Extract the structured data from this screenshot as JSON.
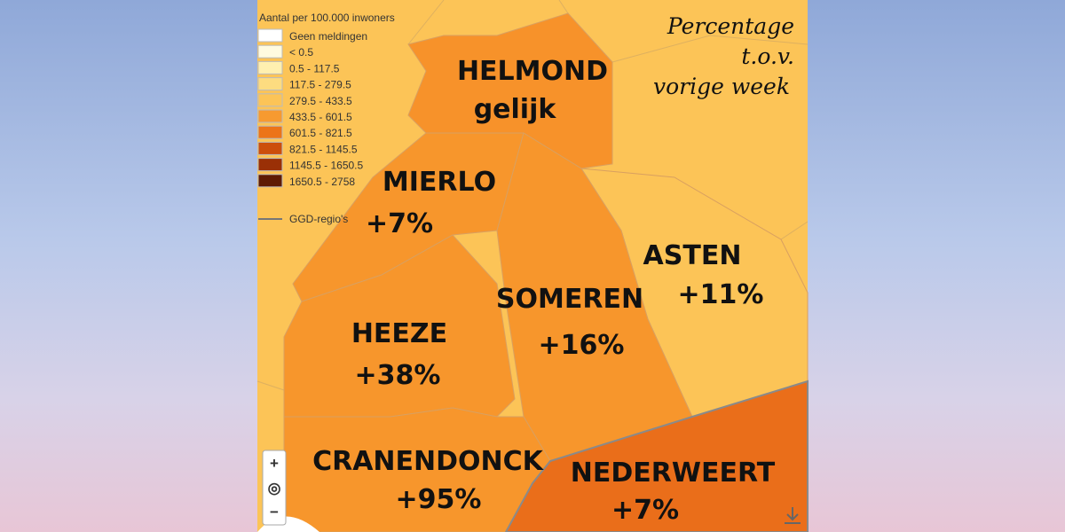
{
  "header": {
    "lines": [
      "Percentage",
      "t.o.v.",
      "vorige week"
    ]
  },
  "legend": {
    "title": "Aantal per 100.000 inwoners",
    "items": [
      {
        "label": "Geen meldingen",
        "color": "#ffffff"
      },
      {
        "label": "< 0.5",
        "color": "#fffbe0"
      },
      {
        "label": "0.5 - 117.5",
        "color": "#fff0b0"
      },
      {
        "label": "117.5 - 279.5",
        "color": "#fddc80"
      },
      {
        "label": "279.5 - 433.5",
        "color": "#fcc457"
      },
      {
        "label": "433.5 - 601.5",
        "color": "#f79a30"
      },
      {
        "label": "601.5 - 821.5",
        "color": "#ec7418"
      },
      {
        "label": "821.5 - 1145.5",
        "color": "#cc4e0c"
      },
      {
        "label": "1145.5 - 1650.5",
        "color": "#9a3006"
      },
      {
        "label": "1650.5 - 2758",
        "color": "#5e1b04"
      }
    ],
    "boundary": "GGD-regio's"
  },
  "regions": [
    {
      "name": "HELMOND",
      "change": "gelijk"
    },
    {
      "name": "MIERLO",
      "change": "+7%"
    },
    {
      "name": "ASTEN",
      "change": "+11%"
    },
    {
      "name": "SOMEREN",
      "change": "+16%"
    },
    {
      "name": "HEEZE",
      "change": "+38%"
    },
    {
      "name": "CRANENDONCK",
      "change": "+95%"
    },
    {
      "name": "NEDERWEERT",
      "change": "+7%"
    }
  ],
  "controls": {
    "zoom_in": "+",
    "locate": "◎",
    "zoom_out": "−"
  }
}
